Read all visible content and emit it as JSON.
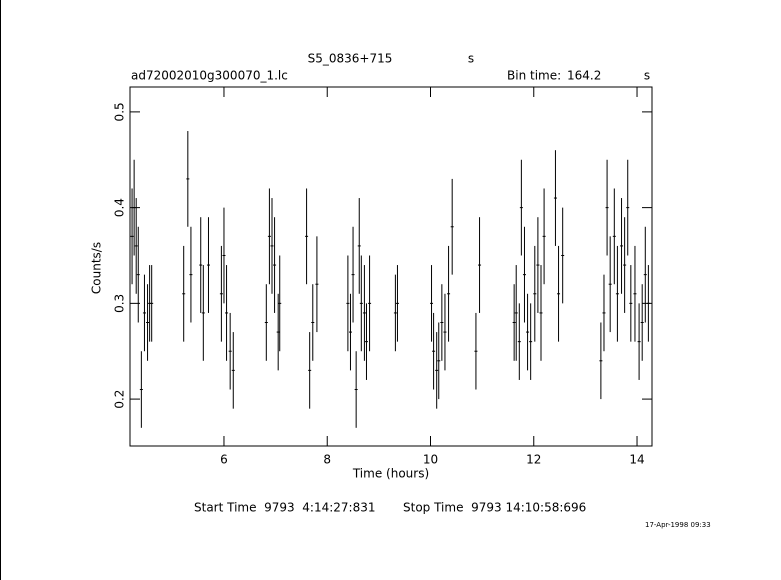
{
  "chart_data": {
    "type": "errorbar",
    "title": "S5_0836+715",
    "title_unit": "s",
    "file_name": "ad72002010g300070_1.lc",
    "bin_time_label": "Bin time:",
    "bin_time": 164.2,
    "bin_time_unit": "s",
    "ylabel": "Counts/s",
    "xlabel": "Time (hours)",
    "start_time": "Start Time  9793  4:14:27:831",
    "stop_time": "Stop Time  9793 14:10:58:696",
    "timestamp": "17-Apr-1998 09:33",
    "color": "#000000",
    "xlim": [
      4.18,
      14.29
    ],
    "xticks": [
      6,
      8,
      10,
      12,
      14
    ],
    "ylim": [
      0.151,
      0.526
    ],
    "yticks": [
      0.2,
      0.3,
      0.4,
      0.5
    ],
    "x": [
      4.22,
      4.26,
      4.3,
      4.34,
      4.4,
      4.46,
      4.52,
      4.56,
      4.6,
      5.22,
      5.3,
      5.36,
      5.55,
      5.6,
      5.7,
      5.95,
      6.0,
      6.05,
      6.12,
      6.18,
      6.82,
      6.88,
      6.93,
      6.98,
      7.05,
      7.08,
      7.6,
      7.66,
      7.72,
      7.8,
      8.4,
      8.45,
      8.5,
      8.56,
      8.62,
      8.66,
      8.72,
      8.76,
      8.82,
      9.32,
      9.36,
      10.02,
      10.06,
      10.12,
      10.16,
      10.22,
      10.28,
      10.35,
      10.42,
      10.88,
      10.95,
      11.62,
      11.66,
      11.72,
      11.76,
      11.82,
      11.88,
      11.94,
      12.02,
      12.08,
      12.14,
      12.2,
      12.42,
      12.48,
      12.56,
      13.3,
      13.36,
      13.42,
      13.48,
      13.56,
      13.62,
      13.7,
      13.76,
      13.82,
      13.88,
      13.96,
      14.04,
      14.1,
      14.16,
      14.22
    ],
    "values": [
      0.37,
      0.4,
      0.36,
      0.33,
      0.21,
      0.29,
      0.28,
      0.3,
      0.3,
      0.31,
      0.43,
      0.33,
      0.34,
      0.29,
      0.34,
      0.31,
      0.35,
      0.29,
      0.25,
      0.23,
      0.28,
      0.37,
      0.36,
      0.34,
      0.27,
      0.3,
      0.37,
      0.23,
      0.28,
      0.32,
      0.3,
      0.27,
      0.33,
      0.21,
      0.36,
      0.3,
      0.29,
      0.26,
      0.3,
      0.29,
      0.3,
      0.3,
      0.25,
      0.23,
      0.24,
      0.28,
      0.27,
      0.31,
      0.38,
      0.25,
      0.34,
      0.28,
      0.29,
      0.26,
      0.4,
      0.33,
      0.27,
      0.26,
      0.31,
      0.34,
      0.29,
      0.37,
      0.41,
      0.31,
      0.35,
      0.24,
      0.29,
      0.4,
      0.32,
      0.37,
      0.31,
      0.36,
      0.34,
      0.4,
      0.3,
      0.31,
      0.26,
      0.28,
      0.33,
      0.3
    ],
    "errors": [
      0.05,
      0.05,
      0.05,
      0.05,
      0.04,
      0.04,
      0.04,
      0.04,
      0.04,
      0.05,
      0.05,
      0.05,
      0.05,
      0.05,
      0.05,
      0.05,
      0.05,
      0.05,
      0.04,
      0.04,
      0.04,
      0.05,
      0.05,
      0.05,
      0.04,
      0.05,
      0.05,
      0.04,
      0.04,
      0.05,
      0.05,
      0.04,
      0.05,
      0.04,
      0.05,
      0.05,
      0.05,
      0.04,
      0.05,
      0.04,
      0.04,
      0.04,
      0.04,
      0.04,
      0.04,
      0.04,
      0.04,
      0.05,
      0.05,
      0.04,
      0.05,
      0.04,
      0.05,
      0.04,
      0.05,
      0.05,
      0.04,
      0.04,
      0.05,
      0.05,
      0.05,
      0.05,
      0.05,
      0.05,
      0.05,
      0.04,
      0.04,
      0.05,
      0.05,
      0.05,
      0.05,
      0.05,
      0.05,
      0.05,
      0.04,
      0.05,
      0.04,
      0.04,
      0.05,
      0.04
    ]
  }
}
